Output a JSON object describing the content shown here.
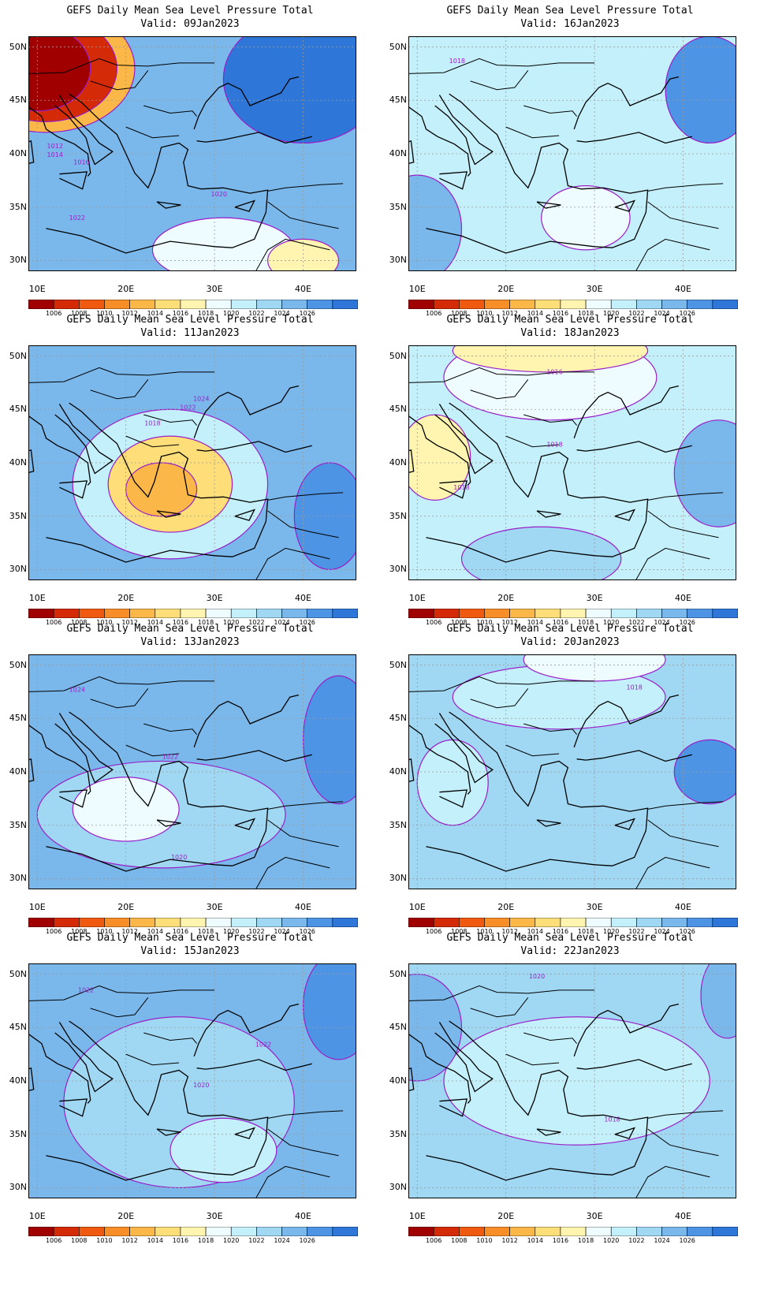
{
  "axes": {
    "lat_labels": [
      "50N",
      "45N",
      "40N",
      "35N",
      "30N"
    ],
    "lat_values": [
      50,
      45,
      40,
      35,
      30
    ],
    "lon_labels": [
      "10E",
      "20E",
      "30E",
      "40E"
    ],
    "lon_values": [
      10,
      20,
      30,
      40
    ],
    "lon_range": [
      9,
      46
    ],
    "lat_range": [
      29,
      51
    ]
  },
  "colorbar": {
    "colors": [
      "#a00000",
      "#d42a08",
      "#f05a10",
      "#f88e28",
      "#fbb848",
      "#fdde78",
      "#fff5b0",
      "#eefcff",
      "#c4f0fb",
      "#a0d8f4",
      "#7ab8ec",
      "#4e94e4",
      "#2e76d8"
    ],
    "labels": [
      "1006",
      "1008",
      "1010",
      "1012",
      "1014",
      "1016",
      "1018",
      "1020",
      "1022",
      "1024",
      "1026"
    ]
  },
  "contour_color": "#9a1ec8",
  "panels": [
    {
      "title": "GEFS Daily Mean Sea Level Pressure Total",
      "valid": "Valid: 09Jan2023",
      "background": "#7ab8ec",
      "regions": [
        {
          "lon": 11,
          "lat": 48,
          "rx": 10,
          "ry": 6,
          "color": "#fbb848"
        },
        {
          "lon": 11,
          "lat": 48,
          "rx": 8,
          "ry": 5,
          "color": "#d42a08"
        },
        {
          "lon": 10,
          "lat": 48,
          "rx": 6,
          "ry": 4,
          "color": "#a00000"
        },
        {
          "lon": 40,
          "lat": 47,
          "rx": 9,
          "ry": 6,
          "color": "#2e76d8"
        },
        {
          "lon": 31,
          "lat": 31,
          "rx": 8,
          "ry": 3,
          "color": "#eefcff"
        },
        {
          "lon": 40,
          "lat": 30,
          "rx": 4,
          "ry": 2,
          "color": "#fff5b0"
        }
      ],
      "contour_labels": [
        {
          "text": "1012",
          "lon": 12,
          "lat": 40.5
        },
        {
          "text": "1014",
          "lon": 12,
          "lat": 39.7
        },
        {
          "text": "1016",
          "lon": 15,
          "lat": 39
        },
        {
          "text": "1020",
          "lon": 30.5,
          "lat": 36
        },
        {
          "text": "1022",
          "lon": 14.5,
          "lat": 33.8
        }
      ]
    },
    {
      "title": "GEFS Daily Mean Sea Level Pressure Total",
      "valid": "Valid: 16Jan2023",
      "background": "#c4f0fb",
      "regions": [
        {
          "lon": 10,
          "lat": 33,
          "rx": 5,
          "ry": 5,
          "color": "#7ab8ec"
        },
        {
          "lon": 43,
          "lat": 46,
          "rx": 5,
          "ry": 5,
          "color": "#4e94e4"
        },
        {
          "lon": 29,
          "lat": 34,
          "rx": 5,
          "ry": 3,
          "color": "#eefcff"
        }
      ],
      "contour_labels": [
        {
          "text": "1018",
          "lon": 14.5,
          "lat": 48.5
        }
      ]
    },
    {
      "title": "GEFS Daily Mean Sea Level Pressure Total",
      "valid": "Valid: 11Jan2023",
      "background": "#7ab8ec",
      "regions": [
        {
          "lon": 25,
          "lat": 38,
          "rx": 11,
          "ry": 7,
          "color": "#c4f0fb"
        },
        {
          "lon": 25,
          "lat": 38,
          "rx": 7,
          "ry": 4.5,
          "color": "#fdde78"
        },
        {
          "lon": 24,
          "lat": 37.5,
          "rx": 4,
          "ry": 2.5,
          "color": "#fbb848"
        },
        {
          "lon": 43,
          "lat": 35,
          "rx": 4,
          "ry": 5,
          "color": "#4e94e4"
        }
      ],
      "contour_labels": [
        {
          "text": "1024",
          "lon": 28.5,
          "lat": 45.8
        },
        {
          "text": "1022",
          "lon": 27,
          "lat": 45
        },
        {
          "text": "1018",
          "lon": 23,
          "lat": 43.5
        }
      ]
    },
    {
      "title": "GEFS Daily Mean Sea Level Pressure Total",
      "valid": "Valid: 18Jan2023",
      "background": "#c4f0fb",
      "regions": [
        {
          "lon": 25,
          "lat": 48,
          "rx": 12,
          "ry": 4,
          "color": "#eefcff"
        },
        {
          "lon": 25,
          "lat": 50.5,
          "rx": 11,
          "ry": 2,
          "color": "#fff5b0"
        },
        {
          "lon": 12,
          "lat": 40.5,
          "rx": 4,
          "ry": 4,
          "color": "#fff5b0"
        },
        {
          "lon": 44,
          "lat": 39,
          "rx": 5,
          "ry": 5,
          "color": "#7ab8ec"
        },
        {
          "lon": 24,
          "lat": 31,
          "rx": 9,
          "ry": 3,
          "color": "#a0d8f4"
        }
      ],
      "contour_labels": [
        {
          "text": "1016",
          "lon": 25.5,
          "lat": 48.3
        },
        {
          "text": "1018",
          "lon": 25.5,
          "lat": 41.5
        },
        {
          "text": "1018",
          "lon": 15,
          "lat": 37.5
        }
      ]
    },
    {
      "title": "GEFS Daily Mean Sea Level Pressure Total",
      "valid": "Valid: 13Jan2023",
      "background": "#7ab8ec",
      "regions": [
        {
          "lon": 24,
          "lat": 36,
          "rx": 14,
          "ry": 5,
          "color": "#a0d8f4"
        },
        {
          "lon": 20,
          "lat": 36.5,
          "rx": 6,
          "ry": 3,
          "color": "#eefcff"
        },
        {
          "lon": 44,
          "lat": 43,
          "rx": 4,
          "ry": 6,
          "color": "#4e94e4"
        }
      ],
      "contour_labels": [
        {
          "text": "1024",
          "lon": 14.5,
          "lat": 47.5
        },
        {
          "text": "1022",
          "lon": 25,
          "lat": 41.2
        },
        {
          "text": "1020",
          "lon": 26,
          "lat": 31.8
        }
      ]
    },
    {
      "title": "GEFS Daily Mean Sea Level Pressure Total",
      "valid": "Valid: 20Jan2023",
      "background": "#a0d8f4",
      "regions": [
        {
          "lon": 26,
          "lat": 47,
          "rx": 12,
          "ry": 3,
          "color": "#c4f0fb"
        },
        {
          "lon": 30,
          "lat": 50.5,
          "rx": 8,
          "ry": 2,
          "color": "#eefcff"
        },
        {
          "lon": 14,
          "lat": 39,
          "rx": 4,
          "ry": 4,
          "color": "#c4f0fb"
        },
        {
          "lon": 43,
          "lat": 40,
          "rx": 4,
          "ry": 3,
          "color": "#4e94e4"
        }
      ],
      "contour_labels": [
        {
          "text": "1018",
          "lon": 34.5,
          "lat": 47.7
        }
      ]
    },
    {
      "title": "GEFS Daily Mean Sea Level Pressure Total",
      "valid": "Valid: 15Jan2023",
      "background": "#7ab8ec",
      "regions": [
        {
          "lon": 26,
          "lat": 38,
          "rx": 13,
          "ry": 8,
          "color": "#a0d8f4"
        },
        {
          "lon": 31,
          "lat": 33.5,
          "rx": 6,
          "ry": 3,
          "color": "#c4f0fb"
        },
        {
          "lon": 44,
          "lat": 47,
          "rx": 4,
          "ry": 5,
          "color": "#4e94e4"
        }
      ],
      "contour_labels": [
        {
          "text": "1022",
          "lon": 15.5,
          "lat": 48.3
        },
        {
          "text": "1022",
          "lon": 35.5,
          "lat": 43.2
        },
        {
          "text": "1020",
          "lon": 28.5,
          "lat": 39.4
        }
      ]
    },
    {
      "title": "GEFS Daily Mean Sea Level Pressure Total",
      "valid": "Valid: 22Jan2023",
      "background": "#a0d8f4",
      "regions": [
        {
          "lon": 28,
          "lat": 40,
          "rx": 15,
          "ry": 6,
          "color": "#c4f0fb"
        },
        {
          "lon": 10,
          "lat": 45,
          "rx": 5,
          "ry": 5,
          "color": "#7ab8ec"
        },
        {
          "lon": 45,
          "lat": 48,
          "rx": 3,
          "ry": 4,
          "color": "#7ab8ec"
        }
      ],
      "contour_labels": [
        {
          "text": "1020",
          "lon": 23.5,
          "lat": 49.6
        },
        {
          "text": "1018",
          "lon": 32,
          "lat": 36.2
        }
      ]
    }
  ]
}
